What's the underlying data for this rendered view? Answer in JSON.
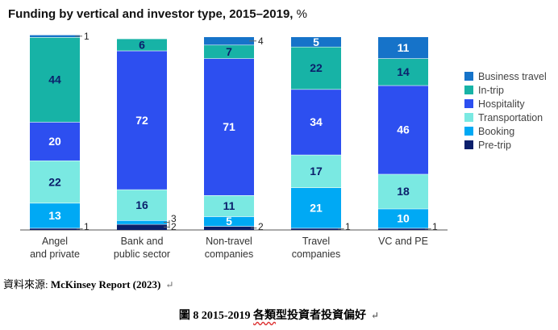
{
  "chart_data": {
    "type": "bar",
    "stacked": true,
    "title": "Funding by vertical and investor type, 2015–2019,",
    "unit": "%",
    "categories": [
      [
        "Angel",
        "and private"
      ],
      [
        "Bank and",
        "public sector"
      ],
      [
        "Non-travel",
        "companies"
      ],
      [
        "Travel",
        "companies"
      ],
      [
        "VC and PE"
      ]
    ],
    "series": [
      {
        "name": "Pre-trip",
        "color": "#0b1f6b",
        "values": [
          1,
          3,
          2,
          1,
          1
        ]
      },
      {
        "name": "Booking",
        "color": "#00a9f4",
        "values": [
          13,
          2,
          5,
          21,
          10
        ]
      },
      {
        "name": "Transportation",
        "color": "#7ae9e2",
        "values": [
          22,
          16,
          11,
          17,
          18
        ]
      },
      {
        "name": "Hospitality",
        "color": "#2d4ff0",
        "values": [
          20,
          72,
          71,
          34,
          46
        ]
      },
      {
        "name": "In-trip",
        "color": "#17b3a6",
        "values": [
          44,
          6,
          7,
          22,
          14
        ]
      },
      {
        "name": "Business travel",
        "color": "#1673c9",
        "values": [
          1,
          0,
          4,
          5,
          11
        ]
      }
    ],
    "legend_order": [
      "Business travel",
      "In-trip",
      "Hospitality",
      "Transportation",
      "Booking",
      "Pre-trip"
    ],
    "legend_position": "right",
    "ylim": [
      0,
      100
    ],
    "grid": false
  },
  "source": {
    "prefix": "資料來源: ",
    "name": "McKinsey Report (2023)",
    "mark": "↵"
  },
  "caption": {
    "prefix": "圖 8 2015-2019 ",
    "underlined": "各類",
    "rest": "型投資者投資偏好",
    "mark": "↵"
  }
}
